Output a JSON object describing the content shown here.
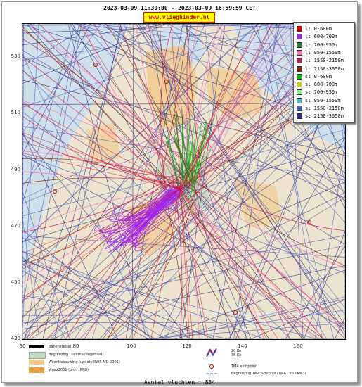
{
  "header": {
    "time_range": "2023-03-09 11:30:00 - 2023-03-09 16:59:59 CET",
    "site": "www.vlieghinder.nl"
  },
  "axes": {
    "y_ticks": [
      "530",
      "510",
      "490",
      "470",
      "450",
      "430"
    ],
    "x_ticks": [
      "60",
      "80",
      "100",
      "120",
      "140",
      "160"
    ]
  },
  "legend": {
    "items": [
      {
        "label": "l: 0-600m",
        "color": "#e00000"
      },
      {
        "label": "l: 600-700m",
        "color": "#a020f0"
      },
      {
        "label": "l: 700-950m",
        "color": "#2e7d32"
      },
      {
        "label": "l: 950-1550m",
        "color": "#ff69b4"
      },
      {
        "label": "l: 1550-2150m",
        "color": "#c2185b"
      },
      {
        "label": "l: 2150-3650m",
        "color": "#8b2500"
      },
      {
        "label": "s: 0-600m",
        "color": "#00c000"
      },
      {
        "label": "s: 600-700m",
        "color": "#c8d400"
      },
      {
        "label": "s: 700-950m",
        "color": "#90ee90"
      },
      {
        "label": "s: 950-1550m",
        "color": "#40c0c0"
      },
      {
        "label": "s: 1550-2150m",
        "color": "#4060c0"
      },
      {
        "label": "s: 2150-3650m",
        "color": "#3a2a8c"
      }
    ]
  },
  "bottom_legend": {
    "runway": "Banenstelsel",
    "airport_boundary": "Begrenzing Luchthavengebied",
    "housing": "Woonbebouwing (update RWS-MD 2001)",
    "vinex": "Vinex2001 (bron: RPD)",
    "noise_20": "20 Ke",
    "noise_35": "35 Ke",
    "tma_exit": "TMA exit point",
    "tma_boundary": "Begrenzing TMA Schiphol  (TMA1 en TMA3)"
  },
  "footer": {
    "count": "Aantal vluchten : 834"
  }
}
